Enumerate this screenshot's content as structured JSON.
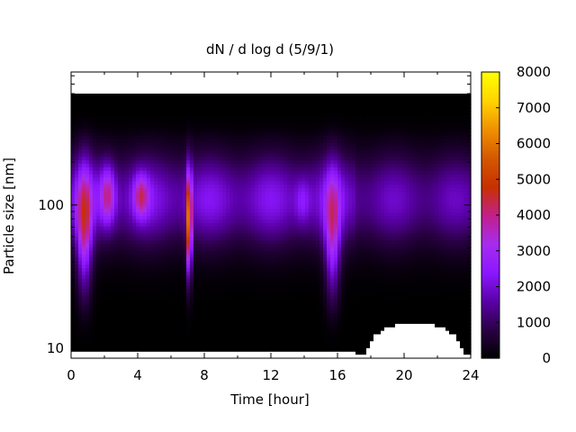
{
  "chart_data": {
    "type": "heatmap",
    "title": "dN / d log d (5/9/1)",
    "xlabel": "Time [hour]",
    "ylabel": "Particle size [nm]",
    "xlim": [
      0,
      24
    ],
    "ylim": [
      8.5,
      850
    ],
    "y_scale": "log",
    "x_ticks": [
      0,
      4,
      8,
      12,
      16,
      20,
      24
    ],
    "x_tick_labels": [
      "0",
      "4",
      "8",
      "12",
      "16",
      "20",
      "24"
    ],
    "y_ticks": [
      10,
      100
    ],
    "y_tick_labels": [
      "10",
      "100"
    ],
    "colorbar": {
      "range": [
        0,
        8000
      ],
      "ticks": [
        0,
        1000,
        2000,
        3000,
        4000,
        5000,
        6000,
        7000,
        8000
      ],
      "tick_labels": [
        "0",
        "1000",
        "2000",
        "3000",
        "4000",
        "5000",
        "6000",
        "7000",
        "8000"
      ],
      "colormap": [
        "#000000",
        "#2a0045",
        "#5a00a8",
        "#8c17ff",
        "#a62cf0",
        "#c2208a",
        "#c83000",
        "#d45800",
        "#f09000",
        "#ffd400",
        "#ffff00"
      ]
    },
    "grid": false,
    "size_distribution_peak_nm": 110,
    "events": [
      {
        "time_hour": 0.8,
        "peak_value": 5200,
        "size_range_nm": [
          22,
          200
        ]
      },
      {
        "time_hour": 2.2,
        "peak_value": 4600,
        "size_range_nm": [
          70,
          200
        ]
      },
      {
        "time_hour": 4.2,
        "peak_value": 4400,
        "size_range_nm": [
          80,
          170
        ]
      },
      {
        "time_hour": 7.1,
        "peak_value": 8000,
        "size_range_nm": [
          30,
          180
        ]
      },
      {
        "time_hour": 13.9,
        "peak_value": 3200,
        "size_range_nm": [
          70,
          160
        ]
      },
      {
        "time_hour": 15.7,
        "peak_value": 4900,
        "size_range_nm": [
          20,
          180
        ]
      }
    ],
    "missing_data_regions": [
      {
        "time_range_hour": [
          17.8,
          23.5
        ],
        "size_below_nm": 15
      },
      {
        "time_range_hour": [
          0,
          17
        ],
        "size_below_nm": 9.5
      }
    ]
  }
}
